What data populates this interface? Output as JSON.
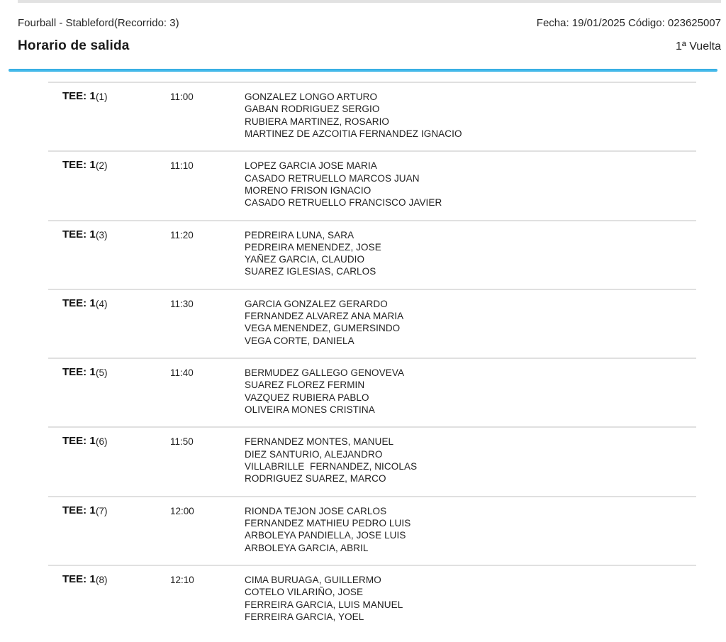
{
  "header": {
    "competition": "Fourball - Stableford(Recorrido: 3)",
    "date_code": "Fecha: 19/01/2025 Código: 023625007",
    "title": "Horario de salida",
    "round": "1ª Vuelta"
  },
  "accent_color": "#29abe2",
  "groups": [
    {
      "tee_label": "TEE: 1",
      "group_number": "(1)",
      "time": "11:00",
      "players": [
        "GONZALEZ LONGO ARTURO",
        "GABAN RODRIGUEZ SERGIO",
        "RUBIERA MARTINEZ, ROSARIO",
        "MARTINEZ DE AZCOITIA FERNANDEZ IGNACIO"
      ]
    },
    {
      "tee_label": "TEE: 1",
      "group_number": "(2)",
      "time": "11:10",
      "players": [
        "LOPEZ GARCIA JOSE MARIA",
        "CASADO RETRUELLO MARCOS JUAN",
        "MORENO FRISON IGNACIO",
        "CASADO RETRUELLO FRANCISCO JAVIER"
      ]
    },
    {
      "tee_label": "TEE: 1",
      "group_number": "(3)",
      "time": "11:20",
      "players": [
        "PEDREIRA LUNA, SARA",
        "PEDREIRA MENENDEZ, JOSE",
        "YAÑEZ GARCIA, CLAUDIO",
        "SUAREZ IGLESIAS, CARLOS"
      ]
    },
    {
      "tee_label": "TEE: 1",
      "group_number": "(4)",
      "time": "11:30",
      "players": [
        "GARCIA GONZALEZ GERARDO",
        "FERNANDEZ ALVAREZ ANA MARIA",
        "VEGA MENENDEZ, GUMERSINDO",
        "VEGA CORTE, DANIELA"
      ]
    },
    {
      "tee_label": "TEE: 1",
      "group_number": "(5)",
      "time": "11:40",
      "players": [
        "BERMUDEZ GALLEGO GENOVEVA",
        "SUAREZ FLOREZ FERMIN",
        "VAZQUEZ RUBIERA PABLO",
        "OLIVEIRA MONES CRISTINA"
      ]
    },
    {
      "tee_label": "TEE: 1",
      "group_number": "(6)",
      "time": "11:50",
      "players": [
        "FERNANDEZ MONTES, MANUEL",
        "DIEZ SANTURIO, ALEJANDRO",
        "VILLABRILLE  FERNANDEZ, NICOLAS",
        "RODRIGUEZ SUAREZ, MARCO"
      ]
    },
    {
      "tee_label": "TEE: 1",
      "group_number": "(7)",
      "time": "12:00",
      "players": [
        "RIONDA TEJON JOSE CARLOS",
        "FERNANDEZ MATHIEU PEDRO LUIS",
        "ARBOLEYA PANDIELLA, JOSE LUIS",
        "ARBOLEYA GARCIA, ABRIL"
      ]
    },
    {
      "tee_label": "TEE: 1",
      "group_number": "(8)",
      "time": "12:10",
      "players": [
        "CIMA BURUAGA, GUILLERMO",
        "COTELO VILARIÑO, JOSE",
        "FERREIRA GARCIA, LUIS MANUEL",
        "FERREIRA GARCIA, YOEL"
      ]
    }
  ]
}
